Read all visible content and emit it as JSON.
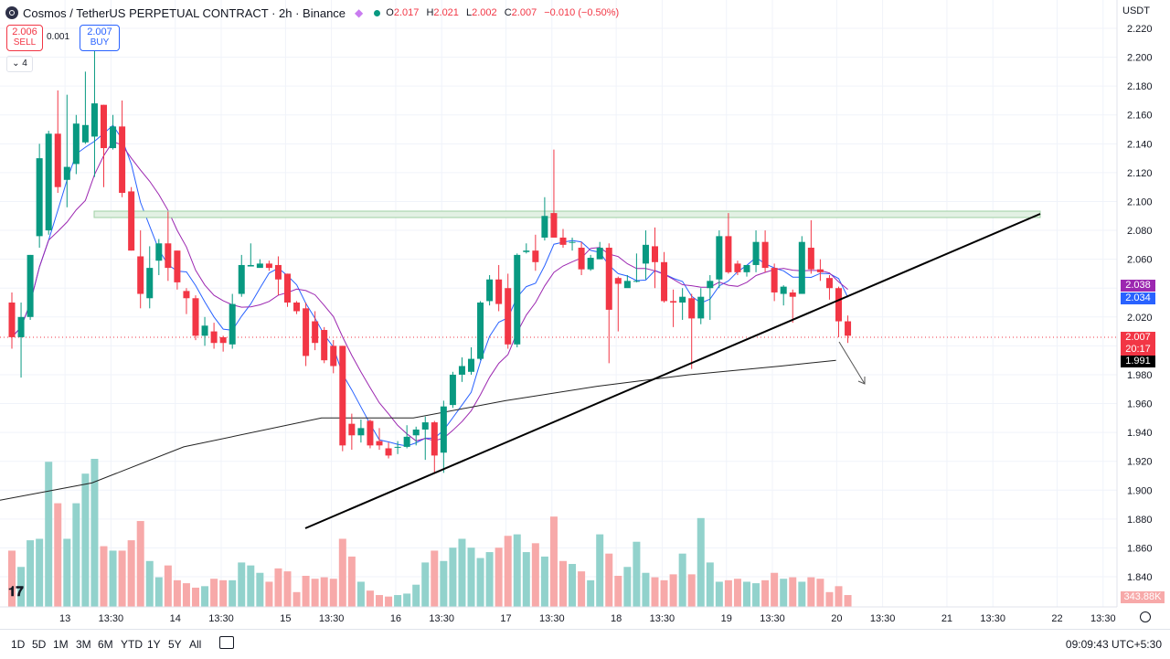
{
  "header": {
    "title": "Cosmos / TetherUS PERPETUAL CONTRACT · 2h · Binance",
    "ohlc": [
      {
        "k": "O",
        "v": "2.017"
      },
      {
        "k": "H",
        "v": "2.021"
      },
      {
        "k": "L",
        "v": "2.002"
      },
      {
        "k": "C",
        "v": "2.007"
      },
      {
        "k": "",
        "v": "−0.010 (−0.50%)"
      }
    ]
  },
  "trade": {
    "sell_price": "2.006",
    "sell_label": "SELL",
    "spread": "0.001",
    "buy_price": "2.007",
    "buy_label": "BUY"
  },
  "indicator_toggle": "⌄ 4",
  "currency": "USDT",
  "price_labels": {
    "ma_fast": "2.038",
    "ma_slow": "2.034",
    "last": "2.007",
    "countdown": "20:17",
    "ma_long": "1.991",
    "volume": "343.88K"
  },
  "toolbar": {
    "timeframes": [
      "1D",
      "5D",
      "1M",
      "3M",
      "6M",
      "YTD",
      "1Y",
      "5Y",
      "All"
    ],
    "clock": "09:09:43 UTC+5:30"
  },
  "chart_data": {
    "type": "candlestick",
    "y_ticks": [
      "2.220",
      "2.200",
      "2.180",
      "2.160",
      "2.140",
      "2.120",
      "2.100",
      "2.080",
      "2.060",
      "2.040",
      "2.020",
      "2.000",
      "1.980",
      "1.960",
      "1.940",
      "1.920",
      "1.900",
      "1.880",
      "1.860",
      "1.840"
    ],
    "y_range": [
      1.83,
      2.225
    ],
    "x_labels": [
      {
        "label": "13",
        "i": 3
      },
      {
        "label": "13:30",
        "i": 8
      },
      {
        "label": "14",
        "i": 15
      },
      {
        "label": "13:30",
        "i": 20
      },
      {
        "label": "15",
        "i": 27
      },
      {
        "label": "13:30",
        "i": 32
      },
      {
        "label": "16",
        "i": 39
      },
      {
        "label": "13:30",
        "i": 44
      },
      {
        "label": "17",
        "i": 51
      },
      {
        "label": "13:30",
        "i": 56
      },
      {
        "label": "18",
        "i": 63
      },
      {
        "label": "13:30",
        "i": 68
      },
      {
        "label": "19",
        "i": 75
      },
      {
        "label": "13:30",
        "i": 80
      },
      {
        "label": "20",
        "i": 87
      },
      {
        "label": "13:30",
        "i": 92
      },
      {
        "label": "21",
        "i": 99
      },
      {
        "label": "13:30",
        "i": 104
      },
      {
        "label": "22",
        "i": 111
      },
      {
        "label": "13:30",
        "i": 116
      }
    ],
    "candles": [
      [
        2.03,
        2.006,
        2.037,
        1.998
      ],
      [
        2.006,
        2.02,
        2.03,
        1.978
      ],
      [
        2.02,
        2.063,
        2.063,
        2.018
      ],
      [
        2.076,
        2.13,
        2.14,
        2.068
      ],
      [
        2.08,
        2.147,
        2.149,
        2.077
      ],
      [
        2.147,
        2.11,
        2.177,
        2.106
      ],
      [
        2.115,
        2.124,
        2.174,
        2.096
      ],
      [
        2.126,
        2.154,
        2.16,
        2.119
      ],
      [
        2.141,
        2.153,
        2.19,
        2.14
      ],
      [
        2.145,
        2.168,
        2.208,
        2.117
      ],
      [
        2.167,
        2.137,
        2.167,
        2.11
      ],
      [
        2.137,
        2.152,
        2.16,
        2.136
      ],
      [
        2.152,
        2.106,
        2.17,
        2.103
      ],
      [
        2.107,
        2.066,
        2.11,
        2.066
      ],
      [
        2.062,
        2.036,
        2.08,
        2.026
      ],
      [
        2.033,
        2.054,
        2.069,
        2.026
      ],
      [
        2.059,
        2.071,
        2.074,
        2.049
      ],
      [
        2.071,
        2.054,
        2.093,
        2.045
      ],
      [
        2.066,
        2.044,
        2.066,
        2.039
      ],
      [
        2.038,
        2.033,
        2.04,
        2.022
      ],
      [
        2.033,
        2.007,
        2.035,
        2.004
      ],
      [
        2.007,
        2.014,
        2.02,
        2.0
      ],
      [
        2.01,
        2.002,
        2.016,
        1.998
      ],
      [
        2.006,
        2.002,
        2.007,
        1.996
      ],
      [
        2.001,
        2.029,
        2.036,
        1.998
      ],
      [
        2.036,
        2.056,
        2.063,
        2.034
      ],
      [
        2.055,
        2.056,
        2.071,
        2.055
      ],
      [
        2.054,
        2.057,
        2.06,
        2.055
      ],
      [
        2.057,
        2.054,
        2.059,
        2.052
      ],
      [
        2.056,
        2.046,
        2.062,
        2.035
      ],
      [
        2.05,
        2.03,
        2.05,
        2.027
      ],
      [
        2.03,
        2.024,
        2.031,
        2.022
      ],
      [
        2.026,
        1.993,
        2.03,
        1.986
      ],
      [
        2.017,
        2.002,
        2.024,
        1.997
      ],
      [
        2.011,
        1.99,
        2.013,
        1.988
      ],
      [
        2.0,
        1.986,
        2.004,
        1.981
      ],
      [
        2.0,
        1.931,
        2.0,
        1.927
      ],
      [
        1.946,
        1.938,
        1.953,
        1.928
      ],
      [
        1.938,
        1.943,
        1.949,
        1.933
      ],
      [
        1.948,
        1.931,
        1.949,
        1.929
      ],
      [
        1.934,
        1.931,
        1.943,
        1.928
      ],
      [
        1.929,
        1.924,
        1.933,
        1.922
      ],
      [
        1.93,
        1.93,
        1.934,
        1.925
      ],
      [
        1.93,
        1.937,
        1.945,
        1.929
      ],
      [
        1.938,
        1.942,
        1.944,
        1.931
      ],
      [
        1.942,
        1.947,
        1.951,
        1.921
      ],
      [
        1.947,
        1.924,
        1.948,
        1.912
      ],
      [
        1.926,
        1.958,
        1.962,
        1.912
      ],
      [
        1.959,
        1.98,
        1.982,
        1.957
      ],
      [
        1.98,
        1.986,
        1.992,
        1.975
      ],
      [
        1.982,
        1.991,
        1.999,
        1.98
      ],
      [
        1.991,
        2.03,
        2.031,
        1.99
      ],
      [
        2.031,
        2.046,
        2.049,
        2.028
      ],
      [
        2.046,
        2.029,
        2.056,
        2.024
      ],
      [
        2.04,
        2.001,
        2.05,
        1.998
      ],
      [
        2.001,
        2.063,
        2.064,
        1.999
      ],
      [
        2.065,
        2.066,
        2.071,
        2.064
      ],
      [
        2.066,
        2.058,
        2.077,
        2.052
      ],
      [
        2.075,
        2.09,
        2.103,
        2.073
      ],
      [
        2.092,
        2.075,
        2.136,
        2.075
      ],
      [
        2.075,
        2.07,
        2.081,
        2.068
      ],
      [
        2.072,
        2.072,
        2.075,
        2.066
      ],
      [
        2.068,
        2.053,
        2.072,
        2.049
      ],
      [
        2.053,
        2.061,
        2.063,
        2.052
      ],
      [
        2.06,
        2.068,
        2.072,
        2.06
      ],
      [
        2.068,
        2.025,
        2.071,
        1.988
      ],
      [
        2.047,
        2.043,
        2.048,
        2.01
      ],
      [
        2.04,
        2.045,
        2.049,
        2.044
      ],
      [
        2.045,
        2.045,
        2.064,
        2.044
      ],
      [
        2.057,
        2.07,
        2.08,
        2.046
      ],
      [
        2.069,
        2.058,
        2.082,
        2.04
      ],
      [
        2.058,
        2.031,
        2.065,
        2.03
      ],
      [
        2.031,
        2.03,
        2.039,
        2.013
      ],
      [
        2.03,
        2.034,
        2.04,
        2.018
      ],
      [
        2.033,
        2.019,
        2.036,
        1.984
      ],
      [
        2.019,
        2.034,
        2.04,
        2.015
      ],
      [
        2.04,
        2.045,
        2.049,
        2.018
      ],
      [
        2.046,
        2.076,
        2.08,
        2.04
      ],
      [
        2.076,
        2.051,
        2.092,
        2.05
      ],
      [
        2.057,
        2.051,
        2.059,
        2.049
      ],
      [
        2.051,
        2.056,
        2.056,
        2.048
      ],
      [
        2.056,
        2.072,
        2.08,
        2.051
      ],
      [
        2.072,
        2.054,
        2.08,
        2.051
      ],
      [
        2.054,
        2.037,
        2.057,
        2.031
      ],
      [
        2.036,
        2.041,
        2.042,
        2.028
      ],
      [
        2.037,
        2.034,
        2.039,
        2.016
      ],
      [
        2.036,
        2.072,
        2.076,
        2.036
      ],
      [
        2.068,
        2.053,
        2.087,
        2.05
      ],
      [
        2.053,
        2.051,
        2.06,
        2.045
      ],
      [
        2.047,
        2.04,
        2.049,
        2.032
      ],
      [
        2.04,
        2.017,
        2.041,
        2.006
      ],
      [
        2.017,
        2.007,
        2.021,
        2.002
      ]
    ],
    "volume": [
      38,
      27,
      45,
      46,
      98,
      70,
      46,
      70,
      90,
      100,
      41,
      38,
      38,
      45,
      58,
      31,
      20,
      28,
      18,
      16,
      13,
      14,
      19,
      18,
      18,
      30,
      28,
      23,
      17,
      26,
      24,
      10,
      21,
      19,
      20,
      19,
      46,
      34,
      17,
      11,
      8,
      7,
      8,
      9,
      15,
      30,
      38,
      31,
      40,
      46,
      40,
      33,
      37,
      40,
      48,
      49,
      37,
      43,
      34,
      61,
      31,
      29,
      24,
      18,
      49,
      36,
      21,
      27,
      44,
      23,
      20,
      18,
      22,
      36,
      22,
      60,
      30,
      17,
      18,
      19,
      17,
      16,
      18,
      23,
      19,
      20,
      17,
      20,
      19,
      10,
      14,
      8
    ]
  }
}
